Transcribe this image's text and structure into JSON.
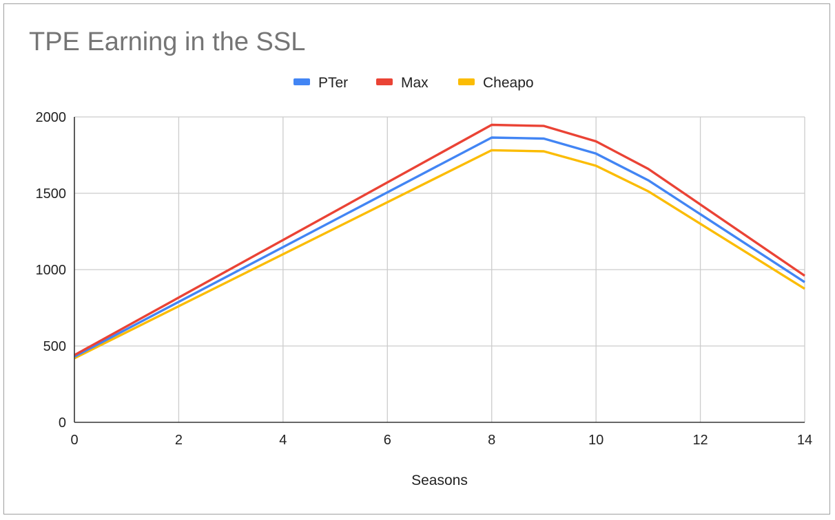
{
  "chart_data": {
    "type": "line",
    "title": "TPE Earning in the SSL",
    "xlabel": "Seasons",
    "ylabel": "",
    "x": [
      0,
      8,
      9,
      10,
      11,
      14
    ],
    "xlim": [
      0,
      14
    ],
    "ylim": [
      0,
      2000
    ],
    "xticks": [
      0,
      2,
      4,
      6,
      8,
      10,
      12,
      14
    ],
    "yticks": [
      0,
      500,
      1000,
      1500,
      2000
    ],
    "grid": true,
    "legend": "top-center",
    "series": [
      {
        "name": "PTer",
        "color": "#4285f4",
        "values": [
          430,
          1865,
          1858,
          1760,
          1585,
          918
        ]
      },
      {
        "name": "Max",
        "color": "#ea4335",
        "values": [
          440,
          1948,
          1941,
          1840,
          1660,
          960
        ]
      },
      {
        "name": "Cheapo",
        "color": "#fbbc04",
        "values": [
          420,
          1782,
          1775,
          1680,
          1513,
          875
        ]
      }
    ]
  }
}
